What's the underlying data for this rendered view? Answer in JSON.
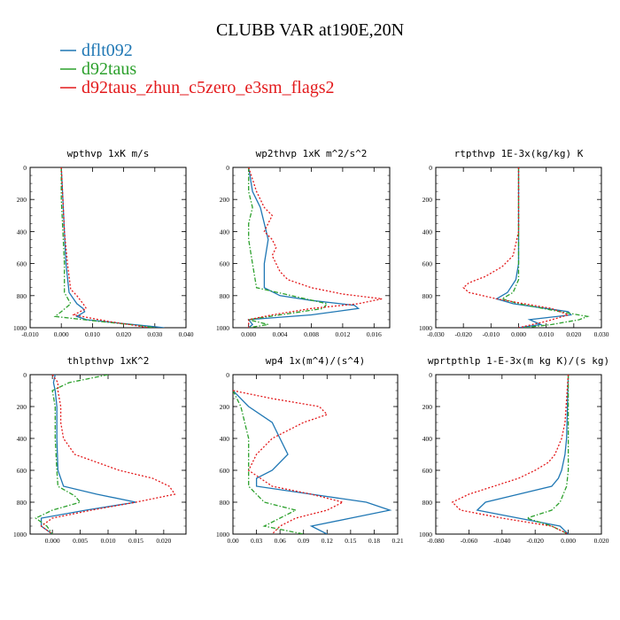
{
  "figure": {
    "title": "CLUBB VAR at190E,20N"
  },
  "legend": [
    {
      "label": "dflt092",
      "color": "#1f77b4"
    },
    {
      "label": "d92taus",
      "color": "#2ca02c"
    },
    {
      "label": "d92taus_zhun_c5zero_e3sm_flags2",
      "color": "#e31a1c"
    }
  ],
  "chart_data": [
    {
      "type": "line",
      "title": "wpthvp  1xK m/s",
      "xlim": [
        -0.01,
        0.04
      ],
      "xticks": [
        -0.01,
        0.0,
        0.01,
        0.02,
        0.03,
        0.04
      ],
      "xticklabels": [
        "-0.010",
        "0.000",
        "0.010",
        "0.020",
        "0.030",
        "0.040"
      ],
      "ylim": [
        1000,
        0
      ],
      "yticks": [
        0,
        200,
        400,
        600,
        800,
        1000
      ],
      "yticklabels": [
        "0",
        "200",
        "400",
        "600",
        "800",
        "1000"
      ],
      "series": [
        {
          "name": "dflt092",
          "y": [
            0,
            200,
            400,
            600,
            780,
            850,
            880,
            900,
            930,
            950,
            970,
            990,
            1000
          ],
          "x": [
            0.0,
            0.0005,
            0.001,
            0.0015,
            0.0025,
            0.005,
            0.007,
            0.0075,
            0.005,
            0.008,
            0.018,
            0.028,
            0.033
          ]
        },
        {
          "name": "d92taus",
          "y": [
            0,
            200,
            400,
            600,
            780,
            850,
            900,
            930,
            960,
            980,
            1000
          ],
          "x": [
            0.0,
            0.0,
            0.0005,
            0.001,
            0.001,
            0.003,
            0.0,
            -0.002,
            0.012,
            0.022,
            0.03
          ]
        },
        {
          "name": "d92taus_zhun_c5zero_e3sm_flags2",
          "y": [
            0,
            200,
            400,
            600,
            760,
            800,
            850,
            880,
            920,
            960,
            990,
            1000
          ],
          "x": [
            0.0,
            0.0005,
            0.001,
            0.002,
            0.003,
            0.005,
            0.007,
            0.008,
            0.004,
            0.015,
            0.025,
            0.028
          ]
        }
      ]
    },
    {
      "type": "line",
      "title": "wp2thvp  1xK m^2/s^2",
      "xlim": [
        -0.002,
        0.018
      ],
      "xticks": [
        0.0,
        0.004,
        0.008,
        0.012,
        0.016
      ],
      "xticklabels": [
        "0.000",
        "0.004",
        "0.008",
        "0.012",
        "0.016"
      ],
      "ylim": [
        1000,
        0
      ],
      "yticks": [
        0,
        200,
        400,
        600,
        800,
        1000
      ],
      "yticklabels": [
        "0",
        "200",
        "400",
        "600",
        "800",
        "1000"
      ],
      "series": [
        {
          "name": "dflt092",
          "y": [
            0,
            150,
            250,
            350,
            450,
            600,
            750,
            800,
            830,
            860,
            880,
            920,
            950,
            980,
            1000
          ],
          "x": [
            0.0,
            0.0005,
            0.0015,
            0.002,
            0.0025,
            0.002,
            0.002,
            0.004,
            0.008,
            0.0135,
            0.014,
            0.008,
            0.0,
            0.0005,
            0.0
          ]
        },
        {
          "name": "d92taus",
          "y": [
            0,
            150,
            250,
            350,
            450,
            600,
            750,
            850,
            880,
            920,
            950,
            980,
            1000
          ],
          "x": [
            0.0,
            0.0,
            0.0005,
            0.0,
            0.0,
            0.0005,
            0.001,
            0.01,
            0.0095,
            0.004,
            0.0,
            0.0025,
            0.0
          ]
        },
        {
          "name": "d92taus_zhun_c5zero_e3sm_flags2",
          "y": [
            0,
            150,
            200,
            250,
            300,
            350,
            400,
            450,
            500,
            550,
            600,
            650,
            700,
            750,
            790,
            820,
            850,
            880,
            920,
            950,
            1000
          ],
          "x": [
            0.0,
            0.001,
            0.0015,
            0.002,
            0.003,
            0.0025,
            0.002,
            0.003,
            0.0035,
            0.003,
            0.0035,
            0.004,
            0.005,
            0.008,
            0.012,
            0.017,
            0.014,
            0.008,
            0.003,
            0.0,
            0.0
          ]
        }
      ]
    },
    {
      "type": "line",
      "title": "rtpthvp  1E-3x(kg/kg) K",
      "xlim": [
        -0.03,
        0.03
      ],
      "xticks": [
        -0.03,
        -0.02,
        -0.01,
        0.0,
        0.01,
        0.02,
        0.03
      ],
      "xticklabels": [
        "-0.030",
        "-0.020",
        "-0.010",
        "0.000",
        "0.010",
        "0.020",
        "0.030"
      ],
      "ylim": [
        1000,
        0
      ],
      "yticks": [
        0,
        200,
        400,
        600,
        800,
        1000
      ],
      "yticklabels": [
        "0",
        "200",
        "400",
        "600",
        "800",
        "1000"
      ],
      "series": [
        {
          "name": "dflt092",
          "y": [
            0,
            400,
            600,
            700,
            780,
            820,
            850,
            880,
            900,
            920,
            950,
            980,
            1000
          ],
          "x": [
            0.0,
            0.0,
            0.0,
            -0.001,
            -0.004,
            -0.008,
            -0.002,
            0.01,
            0.018,
            0.019,
            0.004,
            0.008,
            0.0
          ]
        },
        {
          "name": "d92taus",
          "y": [
            0,
            400,
            600,
            700,
            780,
            820,
            850,
            900,
            930,
            950,
            980,
            1000
          ],
          "x": [
            0.0,
            0.0,
            0.0,
            0.0,
            -0.002,
            -0.006,
            0.0,
            0.015,
            0.025,
            0.022,
            0.012,
            0.002
          ]
        },
        {
          "name": "d92taus_zhun_c5zero_e3sm_flags2",
          "y": [
            0,
            400,
            550,
            620,
            680,
            720,
            750,
            780,
            820,
            850,
            880,
            920,
            960,
            1000
          ],
          "x": [
            0.0,
            0.0,
            -0.002,
            -0.006,
            -0.012,
            -0.018,
            -0.02,
            -0.018,
            -0.008,
            0.002,
            0.012,
            0.018,
            0.01,
            0.0
          ]
        }
      ]
    },
    {
      "type": "line",
      "title": "thlpthvp  1xK^2",
      "xlim": [
        -0.004,
        0.024
      ],
      "xticks": [
        0.0,
        0.005,
        0.01,
        0.015,
        0.02
      ],
      "xticklabels": [
        "0.000",
        "0.005",
        "0.010",
        "0.015",
        "0.020"
      ],
      "ylim": [
        1000,
        0
      ],
      "yticks": [
        0,
        200,
        400,
        600,
        800,
        1000
      ],
      "yticklabels": [
        "0",
        "200",
        "400",
        "600",
        "800",
        "1000"
      ],
      "series": [
        {
          "name": "dflt092",
          "y": [
            0,
            50,
            100,
            200,
            400,
            600,
            700,
            750,
            800,
            850,
            900,
            950,
            1000
          ],
          "x": [
            0.0005,
            0.0002,
            0.0005,
            0.0008,
            0.0008,
            0.001,
            0.002,
            0.008,
            0.015,
            0.006,
            -0.002,
            -0.002,
            0.0
          ]
        },
        {
          "name": "d92taus",
          "y": [
            0,
            50,
            100,
            200,
            400,
            600,
            700,
            760,
            800,
            850,
            900,
            950,
            1000
          ],
          "x": [
            0.01,
            0.003,
            0.0,
            0.0005,
            0.0005,
            0.0008,
            0.001,
            0.004,
            0.005,
            0.0,
            -0.003,
            -0.001,
            0.0
          ]
        },
        {
          "name": "d92taus_zhun_c5zero_e3sm_flags2",
          "y": [
            0,
            50,
            100,
            200,
            300,
            400,
            500,
            600,
            650,
            700,
            750,
            800,
            850,
            900,
            950,
            1000
          ],
          "x": [
            0.0,
            0.001,
            0.001,
            0.0015,
            0.0015,
            0.002,
            0.004,
            0.012,
            0.018,
            0.021,
            0.022,
            0.015,
            0.007,
            0.0,
            -0.002,
            0.0
          ]
        }
      ]
    },
    {
      "type": "line",
      "title": "wp4  1x(m^4)/(s^4)",
      "xlim": [
        0.0,
        0.21
      ],
      "xticks": [
        0.0,
        0.03,
        0.06,
        0.09,
        0.12,
        0.15,
        0.18,
        0.21
      ],
      "xticklabels": [
        "0.00",
        "0.03",
        "0.06",
        "0.09",
        "0.12",
        "0.15",
        "0.18",
        "0.21"
      ],
      "ylim": [
        1000,
        0
      ],
      "yticks": [
        0,
        200,
        400,
        600,
        800,
        1000
      ],
      "yticklabels": [
        "0",
        "200",
        "400",
        "600",
        "800",
        "1000"
      ],
      "series": [
        {
          "name": "dflt092",
          "y": [
            100,
            200,
            300,
            400,
            500,
            600,
            650,
            700,
            750,
            800,
            850,
            900,
            950,
            1000
          ],
          "x": [
            0.0,
            0.02,
            0.05,
            0.06,
            0.07,
            0.05,
            0.03,
            0.03,
            0.1,
            0.17,
            0.2,
            0.15,
            0.1,
            0.12
          ]
        },
        {
          "name": "d92taus",
          "y": [
            100,
            200,
            300,
            400,
            500,
            600,
            700,
            800,
            850,
            900,
            950,
            1000
          ],
          "x": [
            0.0,
            0.01,
            0.015,
            0.02,
            0.02,
            0.02,
            0.02,
            0.04,
            0.08,
            0.06,
            0.04,
            0.09
          ]
        },
        {
          "name": "d92taus_zhun_c5zero_e3sm_flags2",
          "y": [
            100,
            150,
            200,
            250,
            300,
            400,
            500,
            600,
            700,
            750,
            800,
            850,
            900,
            950,
            1000
          ],
          "x": [
            0.0,
            0.05,
            0.11,
            0.12,
            0.09,
            0.05,
            0.03,
            0.02,
            0.05,
            0.1,
            0.14,
            0.12,
            0.08,
            0.06,
            0.05
          ]
        }
      ]
    },
    {
      "type": "line",
      "title": "wprtpthlp  1-E-3x(m kg K)/(s kg)",
      "xlim": [
        -0.08,
        0.02
      ],
      "xticks": [
        -0.08,
        -0.06,
        -0.04,
        -0.02,
        0.0,
        0.02
      ],
      "xticklabels": [
        "-0.080",
        "-0.060",
        "-0.040",
        "-0.020",
        "0.000",
        "0.020"
      ],
      "ylim": [
        1000,
        0
      ],
      "yticks": [
        0,
        200,
        400,
        600,
        800,
        1000
      ],
      "yticklabels": [
        "0",
        "200",
        "400",
        "600",
        "800",
        "1000"
      ],
      "series": [
        {
          "name": "dflt092",
          "y": [
            0,
            400,
            500,
            600,
            650,
            700,
            750,
            800,
            850,
            900,
            950,
            1000
          ],
          "x": [
            0.0,
            -0.001,
            -0.002,
            -0.004,
            -0.006,
            -0.01,
            -0.03,
            -0.05,
            -0.055,
            -0.03,
            -0.005,
            0.0
          ]
        },
        {
          "name": "d92taus",
          "y": [
            0,
            400,
            500,
            600,
            700,
            800,
            850,
            900,
            950,
            1000
          ],
          "x": [
            0.0,
            0.0,
            0.0,
            0.0,
            -0.001,
            -0.005,
            -0.01,
            -0.025,
            -0.01,
            0.0
          ]
        },
        {
          "name": "d92taus_zhun_c5zero_e3sm_flags2",
          "y": [
            0,
            300,
            400,
            500,
            550,
            600,
            650,
            700,
            750,
            800,
            850,
            900,
            950,
            1000
          ],
          "x": [
            0.0,
            -0.002,
            -0.004,
            -0.008,
            -0.012,
            -0.02,
            -0.03,
            -0.045,
            -0.06,
            -0.07,
            -0.065,
            -0.04,
            -0.01,
            0.0
          ]
        }
      ]
    }
  ]
}
